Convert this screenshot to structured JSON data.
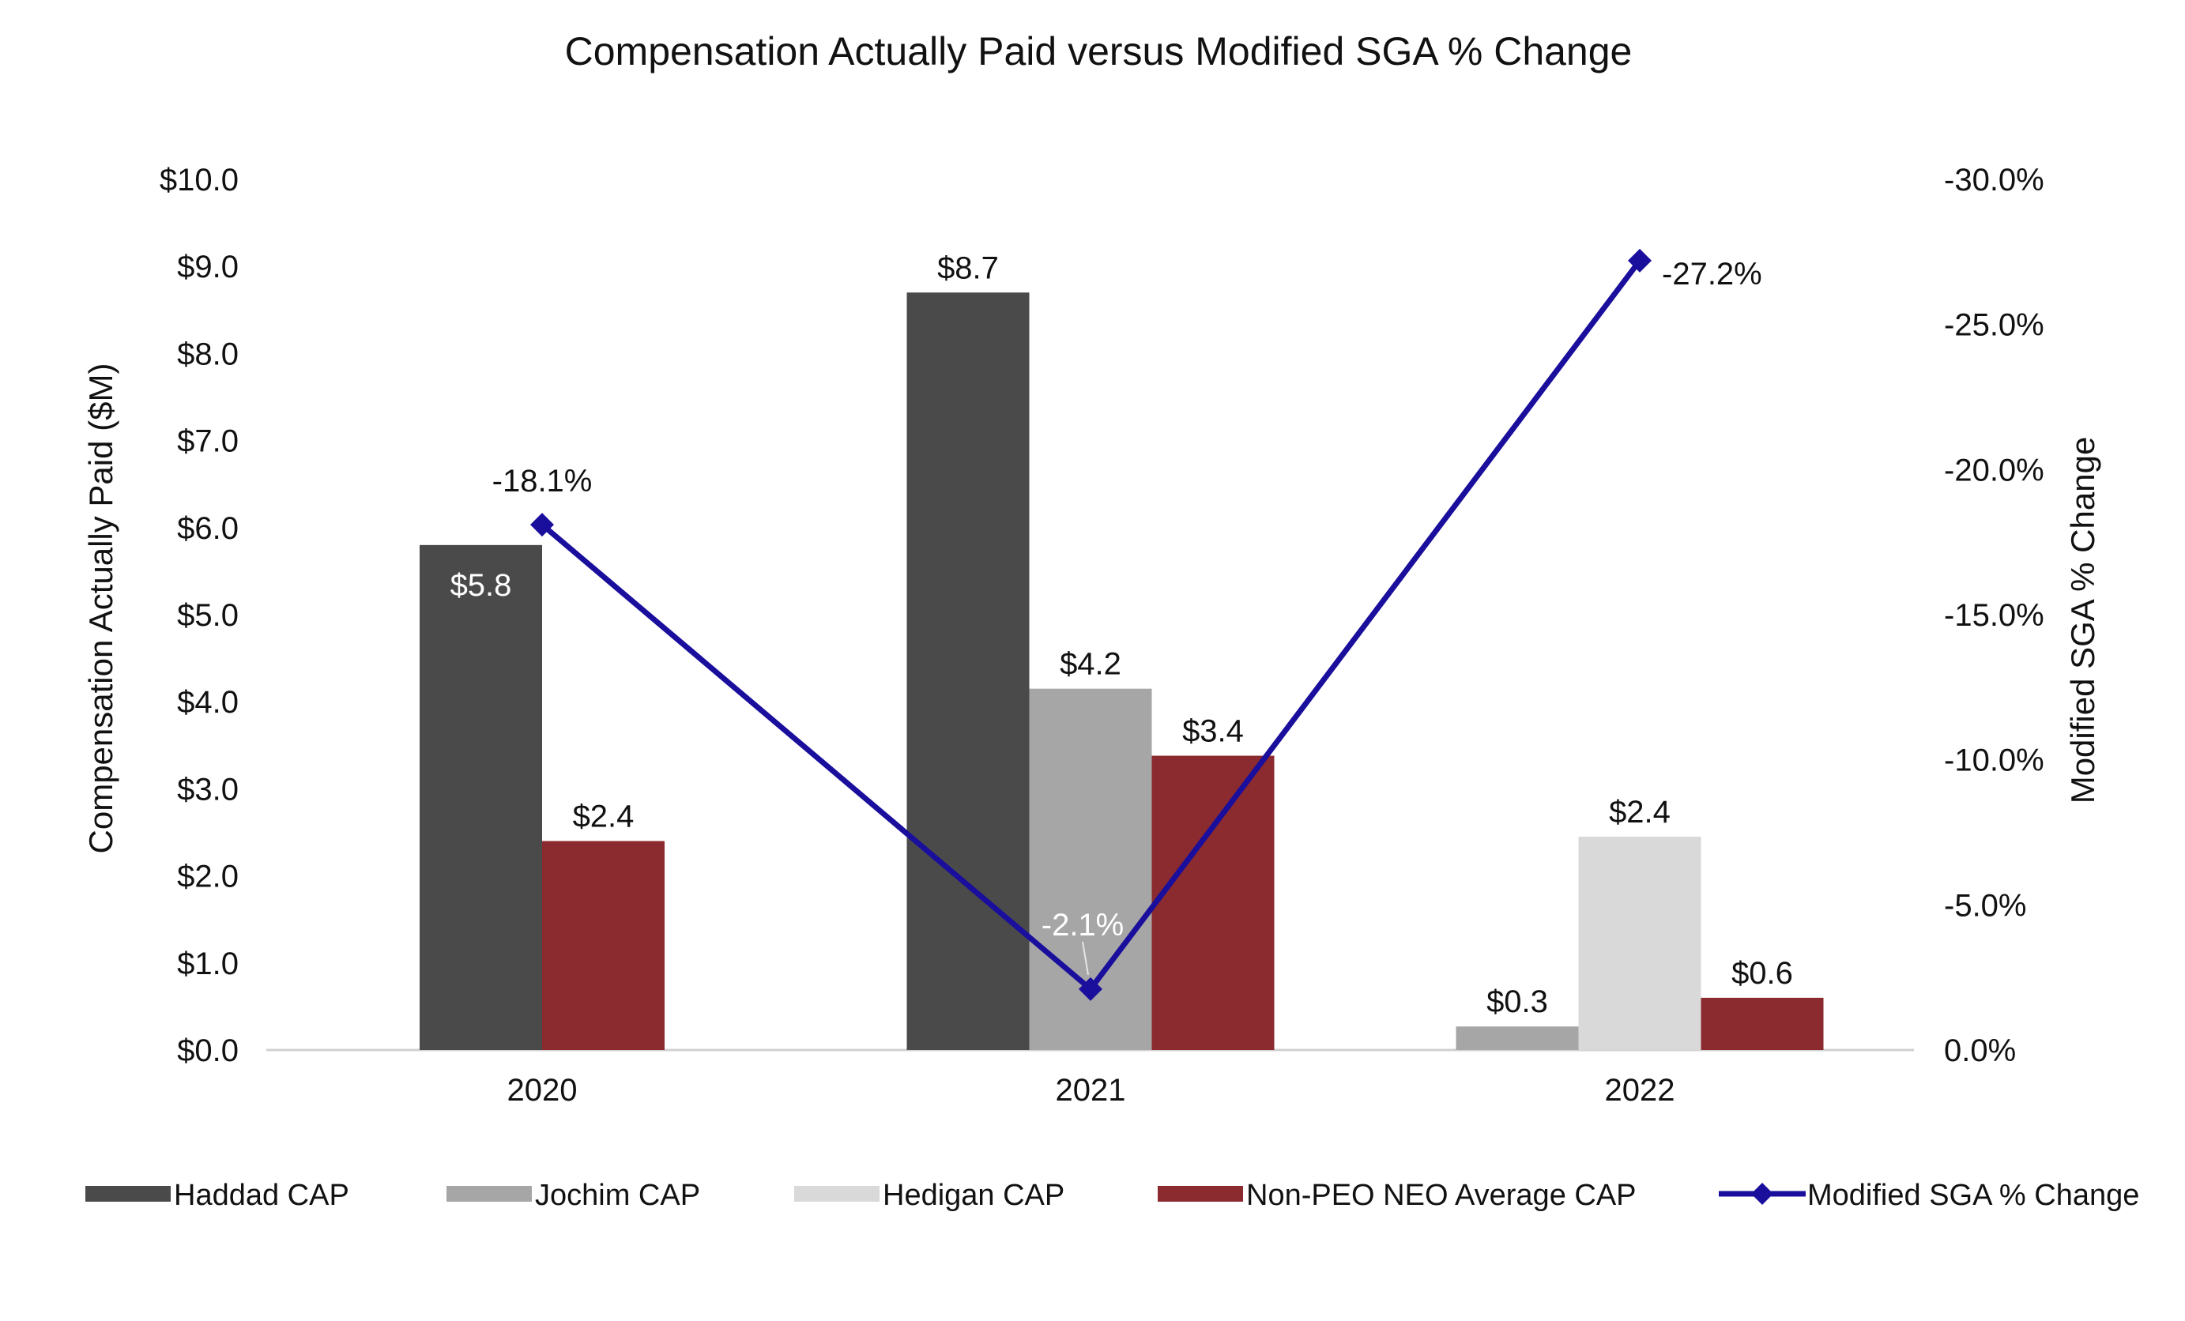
{
  "chart_data": {
    "type": "bar",
    "title": "Compensation Actually Paid versus Modified SGA % Change",
    "ylabel": "Compensation Actually Paid ($M)",
    "y2label": "Modified SGA % Change",
    "categories": [
      "2020",
      "2021",
      "2022"
    ],
    "ylim": [
      0,
      10
    ],
    "y_ticks": [
      "$0.0",
      "$1.0",
      "$2.0",
      "$3.0",
      "$4.0",
      "$5.0",
      "$6.0",
      "$7.0",
      "$8.0",
      "$9.0",
      "$10.0"
    ],
    "y2lim": [
      0,
      -30
    ],
    "y2_ticks": [
      "0.0%",
      "-5.0%",
      "-10.0%",
      "-15.0%",
      "-20.0%",
      "-25.0%",
      "-30.0%"
    ],
    "series": [
      {
        "name": "Haddad CAP",
        "type": "bar",
        "color": "#4a4a4a",
        "values": [
          5.8,
          8.7,
          null
        ],
        "labels": [
          "$5.8",
          "$8.7",
          ""
        ]
      },
      {
        "name": "Jochim CAP",
        "type": "bar",
        "color": "#a6a6a6",
        "values": [
          null,
          4.15,
          0.27
        ],
        "labels": [
          "",
          "$4.2",
          "$0.3"
        ]
      },
      {
        "name": "Hedigan CAP",
        "type": "bar",
        "color": "#d9d9d9",
        "values": [
          null,
          null,
          2.45
        ],
        "labels": [
          "",
          "",
          "$2.4"
        ]
      },
      {
        "name": "Non-PEO NEO Average CAP",
        "type": "bar",
        "color": "#8b2a2f",
        "values": [
          2.4,
          3.38,
          0.6
        ],
        "labels": [
          "$2.4",
          "$3.4",
          "$0.6"
        ]
      },
      {
        "name": "Modified SGA % Change",
        "type": "line",
        "axis": "right",
        "color": "#1a0f9c",
        "values": [
          -18.1,
          -2.1,
          -27.2
        ],
        "labels": [
          "-18.1%",
          "-2.1%",
          "-27.2%"
        ]
      }
    ],
    "legend_position": "bottom",
    "grid": false
  }
}
